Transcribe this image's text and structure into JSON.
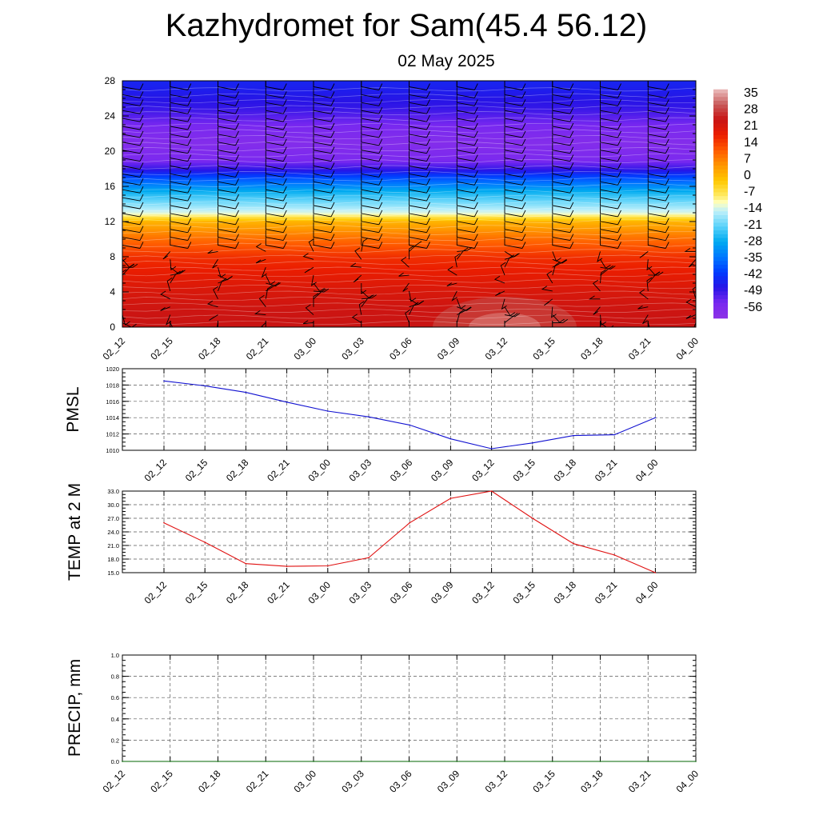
{
  "header": {
    "title": "Kazhydromet for Sam(45.4 56.12)",
    "date": "02 May 2025"
  },
  "time_labels": [
    "02_12",
    "02_15",
    "02_18",
    "02_21",
    "03_00",
    "03_03",
    "03_06",
    "03_09",
    "03_12",
    "03_15",
    "03_18",
    "03_21",
    "04_00"
  ],
  "colors": {
    "pmsl": "#1010d0",
    "temp": "#e01010",
    "precip": "#006400",
    "grid": "#555555"
  },
  "chart_data": [
    {
      "type": "heatmap",
      "title": "",
      "xlabel": "",
      "ylabel": "",
      "x": [
        "02_12",
        "02_15",
        "02_18",
        "02_21",
        "03_00",
        "03_03",
        "03_06",
        "03_09",
        "03_12",
        "03_15",
        "03_18",
        "03_21",
        "04_00"
      ],
      "yticks": [
        0,
        4,
        8,
        12,
        16,
        20,
        24,
        28
      ],
      "ylim": [
        0,
        28
      ],
      "colorbar": {
        "labels": [
          "35",
          "28",
          "21",
          "14",
          "7",
          "0",
          "-7",
          "-14",
          "-21",
          "-28",
          "-35",
          "-42",
          "-49",
          "-56"
        ],
        "range": [
          -63,
          42
        ],
        "placement": "right"
      },
      "temperature_profile": [
        {
          "y": 0,
          "value": 28
        },
        {
          "y": 2,
          "value": 27
        },
        {
          "y": 4,
          "value": 25
        },
        {
          "y": 6,
          "value": 22
        },
        {
          "y": 8,
          "value": 19
        },
        {
          "y": 10,
          "value": 12
        },
        {
          "y": 12,
          "value": 3
        },
        {
          "y": 13,
          "value": -12
        },
        {
          "y": 14,
          "value": -18
        },
        {
          "y": 15,
          "value": -24
        },
        {
          "y": 16,
          "value": -32
        },
        {
          "y": 17,
          "value": -40
        },
        {
          "y": 18,
          "value": -50
        },
        {
          "y": 19,
          "value": -57
        },
        {
          "y": 21,
          "value": -60
        },
        {
          "y": 23,
          "value": -56
        },
        {
          "y": 25,
          "value": -50
        },
        {
          "y": 28,
          "value": -46
        }
      ],
      "wind_barbs": true,
      "grid": false
    },
    {
      "type": "line",
      "title": "",
      "xlabel": "",
      "ylabel": "PMSL",
      "x": [
        "02_12",
        "02_15",
        "02_18",
        "02_21",
        "03_00",
        "03_03",
        "03_06",
        "03_09",
        "03_12",
        "03_15",
        "03_18",
        "03_21",
        "04_00"
      ],
      "series": [
        {
          "values": [
            1018.5,
            1017.9,
            1017.1,
            1015.9,
            1014.8,
            1014.1,
            1013.1,
            1011.4,
            1010.2,
            1010.9,
            1011.8,
            1011.9,
            1014.0
          ]
        }
      ],
      "yticks": [
        "1010",
        "1012",
        "1014",
        "1016",
        "1018",
        "1020"
      ],
      "ylim": [
        1010,
        1020
      ],
      "grid": true
    },
    {
      "type": "line",
      "title": "",
      "xlabel": "",
      "ylabel": "TEMP at 2 M",
      "x": [
        "02_12",
        "02_15",
        "02_18",
        "02_21",
        "03_00",
        "03_03",
        "03_06",
        "03_09",
        "03_12",
        "03_15",
        "03_18",
        "03_21",
        "04_00"
      ],
      "series": [
        {
          "values": [
            26.0,
            21.7,
            17.0,
            16.4,
            16.5,
            18.3,
            26.0,
            31.4,
            33.0,
            27.0,
            21.4,
            18.9,
            15.0
          ]
        }
      ],
      "yticks": [
        "15.0",
        "18.0",
        "21.0",
        "24.0",
        "27.0",
        "30.0",
        "33.0"
      ],
      "ylim": [
        15,
        33
      ],
      "grid": true
    },
    {
      "type": "line",
      "title": "",
      "xlabel": "",
      "ylabel": "PRECIP, mm",
      "x": [
        "02_12",
        "02_15",
        "02_18",
        "02_21",
        "03_00",
        "03_03",
        "03_06",
        "03_09",
        "03_12",
        "03_15",
        "03_18",
        "03_21",
        "04_00"
      ],
      "series": [
        {
          "values": [
            0,
            0,
            0,
            0,
            0,
            0,
            0,
            0,
            0,
            0,
            0,
            0,
            0
          ]
        }
      ],
      "yticks": [
        "0.0",
        "0.2",
        "0.4",
        "0.6",
        "0.8",
        "1.0"
      ],
      "ylim": [
        0,
        1
      ],
      "grid": true
    }
  ]
}
